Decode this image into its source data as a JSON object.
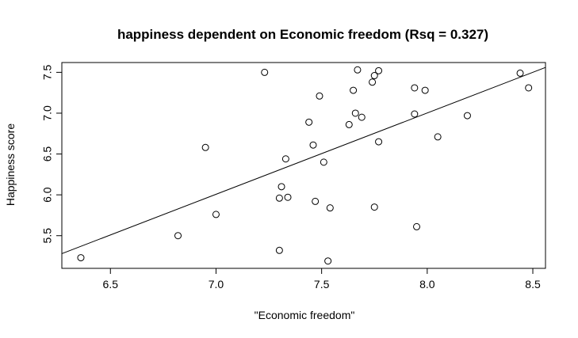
{
  "chart_data": {
    "type": "scatter",
    "title": "happiness dependent on Economic freedom (Rsq = 0.327)",
    "xlabel": "\"Economic freedom\"",
    "ylabel": "Happiness score",
    "xlim": [
      6.27,
      8.56
    ],
    "ylim": [
      5.1,
      7.62
    ],
    "xticks": [
      "6.5",
      "7.0",
      "7.5",
      "8.0",
      "8.5"
    ],
    "yticks": [
      "5.5",
      "6.0",
      "6.5",
      "7.0",
      "7.5"
    ],
    "grid": false,
    "legend": "none",
    "regression_line": {
      "x": [
        6.27,
        8.56
      ],
      "y": [
        5.28,
        7.56
      ]
    },
    "points": {
      "x": [
        6.36,
        6.82,
        6.95,
        7.0,
        7.23,
        7.3,
        7.3,
        7.31,
        7.33,
        7.34,
        7.44,
        7.46,
        7.47,
        7.49,
        7.51,
        7.53,
        7.54,
        7.63,
        7.65,
        7.66,
        7.67,
        7.69,
        7.74,
        7.75,
        7.75,
        7.77,
        7.77,
        7.94,
        7.94,
        7.95,
        7.99,
        8.05,
        8.19,
        8.44,
        8.48
      ],
      "y": [
        5.23,
        5.5,
        6.58,
        5.76,
        7.5,
        5.32,
        5.96,
        6.1,
        6.44,
        5.97,
        6.89,
        6.61,
        5.92,
        7.21,
        6.4,
        5.19,
        5.84,
        6.86,
        7.28,
        7.0,
        7.53,
        6.95,
        7.38,
        7.46,
        5.85,
        7.52,
        6.65,
        7.31,
        6.99,
        5.61,
        7.28,
        6.71,
        6.97,
        7.49,
        7.31
      ]
    }
  }
}
